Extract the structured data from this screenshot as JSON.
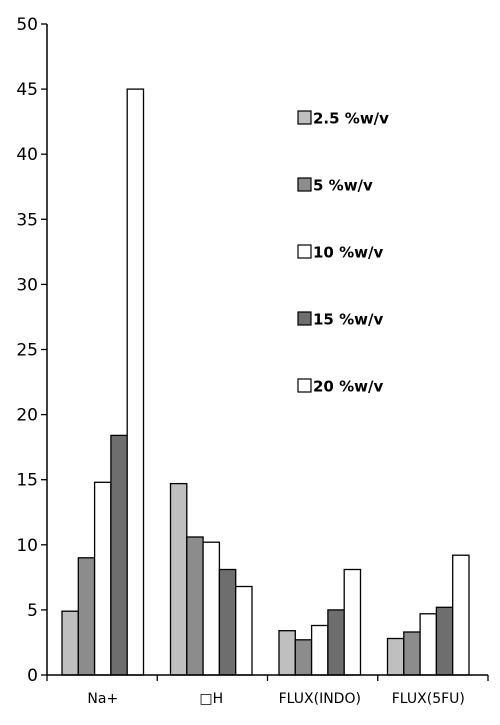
{
  "chart_data": {
    "type": "bar",
    "categories": [
      "Na+",
      "□H",
      "FLUX(INDO)",
      "FLUX(5FU)"
    ],
    "series": [
      {
        "name": "2.5 %w/v",
        "color": "#bfbfbf",
        "values": [
          4.9,
          14.7,
          3.4,
          2.8
        ]
      },
      {
        "name": "5 %w/v",
        "color": "#8c8c8c",
        "values": [
          9.0,
          10.6,
          2.7,
          3.3
        ]
      },
      {
        "name": "10 %w/v",
        "color": "#ffffff",
        "values": [
          14.8,
          10.2,
          3.8,
          4.7
        ]
      },
      {
        "name": "15 %w/v",
        "color": "#6e6e6e",
        "values": [
          18.4,
          8.1,
          5.0,
          5.2
        ]
      },
      {
        "name": "20 %w/v",
        "color": "#ffffff",
        "values": [
          45.0,
          6.8,
          8.1,
          9.2
        ]
      }
    ],
    "ylim": [
      0,
      50
    ],
    "yticks": [
      0,
      5,
      10,
      15,
      20,
      25,
      30,
      35,
      40,
      45,
      50
    ],
    "grid": false,
    "legend_position": "right"
  }
}
